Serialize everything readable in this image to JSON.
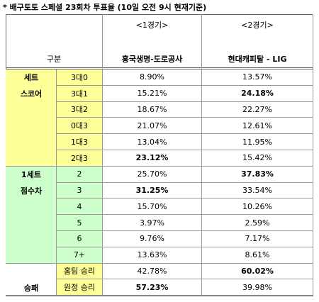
{
  "title": "* 배구토토 스페셜 23회차 투표율 (10일 오전 9시 현재기준)",
  "table": {
    "header": {
      "games": [
        "<1경기>",
        "<2경기>"
      ],
      "label": "구분",
      "teams": [
        "흥국생명-도로공사",
        "현대캐피탈 - LIG"
      ]
    },
    "sections": [
      {
        "name": [
          "세트",
          "스코어"
        ],
        "name_color": "#ffff99",
        "label_color": "#ffff99",
        "rows": [
          {
            "label": "3대0",
            "values": [
              "8.90%",
              "13.57%"
            ]
          },
          {
            "label": "3대1",
            "values": [
              "15.21%",
              "24.18%"
            ],
            "bold": 1
          },
          {
            "label": "3대2",
            "values": [
              "18.67%",
              "22.27%"
            ]
          },
          {
            "label": "0대3",
            "values": [
              "21.07%",
              "12.61%"
            ]
          },
          {
            "label": "1대3",
            "values": [
              "13.04%",
              "11.95%"
            ]
          },
          {
            "label": "2대3",
            "values": [
              "23.12%",
              "15.42%"
            ],
            "bold": 0
          }
        ]
      },
      {
        "name": [
          "1세트",
          "점수차"
        ],
        "name_color": "#ccffcc",
        "label_color": "#ccffcc",
        "rows": [
          {
            "label": "2",
            "values": [
              "25.70%",
              "37.83%"
            ],
            "bold": 1
          },
          {
            "label": "3",
            "values": [
              "31.25%",
              "33.54%"
            ],
            "bold": 0
          },
          {
            "label": "4",
            "values": [
              "15.70%",
              "10.26%"
            ]
          },
          {
            "label": "5",
            "values": [
              "3.97%",
              "2.59%"
            ]
          },
          {
            "label": "6",
            "values": [
              "9.76%",
              "7.17%"
            ]
          },
          {
            "label": "7+",
            "values": [
              "13.63%",
              "8.61%"
            ]
          }
        ]
      },
      {
        "name": [
          "승패"
        ],
        "name_color": "#ffffff",
        "label_color": "#ffff99",
        "rows": [
          {
            "label": "홈팀 승리",
            "values": [
              "42.78%",
              "60.02%"
            ],
            "bold": 1
          },
          {
            "label": "원정 승리",
            "values": [
              "57.23%",
              "39.98%"
            ],
            "bold": 0
          }
        ]
      }
    ]
  }
}
